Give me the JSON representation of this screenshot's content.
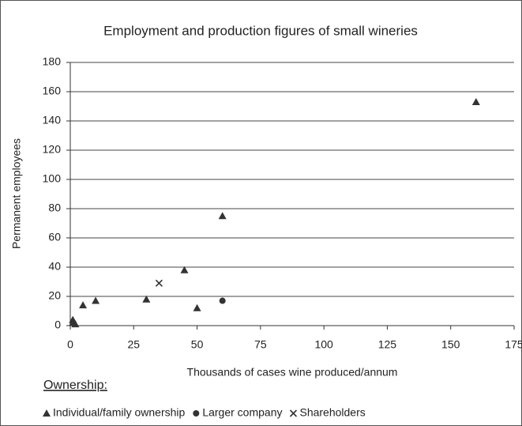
{
  "chart_data": {
    "type": "scatter",
    "title": "Employment and production figures of small wineries",
    "x_label": "Thousands of cases wine produced/annum",
    "y_label": "Permanent employees",
    "legend_title": "Ownership:",
    "xlim": [
      0,
      175
    ],
    "xticks": [
      0,
      25,
      50,
      75,
      100,
      125,
      150,
      175
    ],
    "ylim": [
      0,
      180
    ],
    "yticks": [
      0,
      20,
      40,
      60,
      80,
      100,
      120,
      140,
      160,
      180
    ],
    "grid": true,
    "legend": "bottom",
    "series": [
      {
        "name": "Individual/family ownership",
        "marker": "triangle",
        "color": "#333333",
        "x": [
          1,
          1,
          2,
          5,
          10,
          30,
          45,
          50,
          60,
          160
        ],
        "values": [
          4,
          2,
          1,
          14,
          17,
          18,
          38,
          12,
          75,
          153
        ]
      },
      {
        "name": "Larger company",
        "marker": "circle",
        "color": "#333333",
        "x": [
          60
        ],
        "values": [
          17
        ]
      },
      {
        "name": "Shareholders",
        "marker": "x",
        "color": "#333333",
        "x": [
          35
        ],
        "values": [
          29
        ]
      }
    ]
  }
}
